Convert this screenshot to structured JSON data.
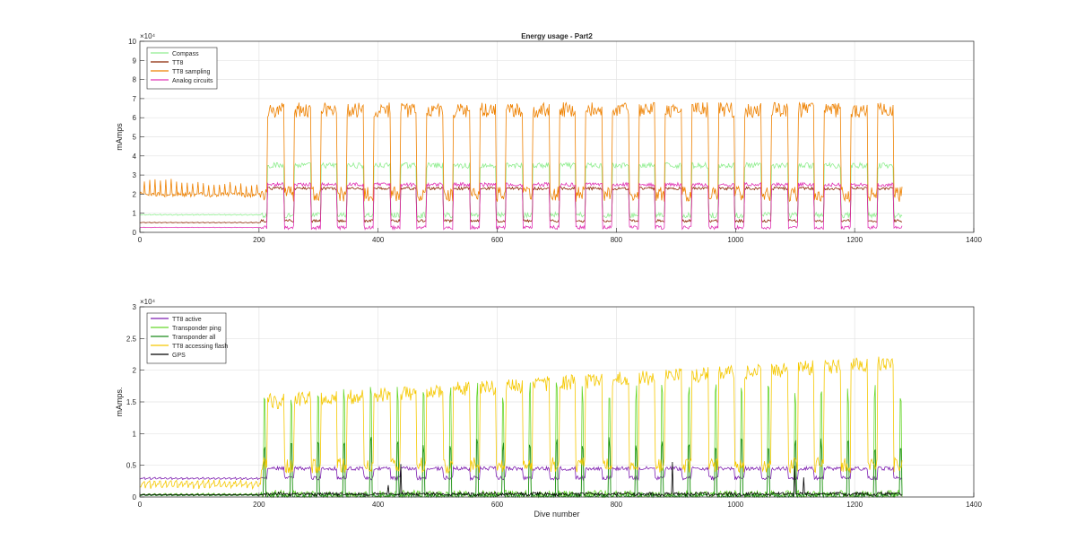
{
  "chart_data": [
    {
      "type": "line",
      "title": "Energy usage - Part2",
      "xlabel": "",
      "ylabel": "mAmps",
      "xlim": [
        0,
        1400
      ],
      "ylim": [
        0,
        100000
      ],
      "x_ticks": [
        "0",
        "200",
        "400",
        "600",
        "800",
        "1000",
        "1200",
        "1400"
      ],
      "y_ticks": [
        "0",
        "1",
        "2",
        "3",
        "4",
        "5",
        "6",
        "7",
        "8",
        "9",
        "10"
      ],
      "y_multiplier": "×10⁴",
      "grid": true,
      "legend_position": "top-left",
      "series": [
        {
          "name": "Compass",
          "color": "#90ee90",
          "level_pre": 9000,
          "level_high": 35000,
          "level_low": 9000,
          "amp_pre": 500,
          "noise": 3000
        },
        {
          "name": "TT8",
          "color": "#8b2500",
          "level_pre": 5000,
          "level_high": 23000,
          "level_low": 6000,
          "amp_pre": 300,
          "noise": 1500
        },
        {
          "name": "TT8 sampling",
          "color": "#ee8100",
          "level_pre": 19000,
          "level_high": 64000,
          "level_low": 20000,
          "amp_pre": 9000,
          "noise": 8000
        },
        {
          "name": "Analog circuits",
          "color": "#e033b3",
          "level_pre": 2500,
          "level_high": 25000,
          "level_low": 2500,
          "amp_pre": 200,
          "noise": 2000
        }
      ]
    },
    {
      "type": "line",
      "title": "",
      "xlabel": "Dive number",
      "ylabel": "mAmps.",
      "xlim": [
        0,
        1400
      ],
      "ylim": [
        0,
        30000
      ],
      "x_ticks": [
        "0",
        "200",
        "400",
        "600",
        "800",
        "1000",
        "1200",
        "1400"
      ],
      "y_ticks": [
        "0",
        "0.5",
        "1",
        "1.5",
        "2",
        "2.5",
        "3"
      ],
      "y_multiplier": "×10⁴",
      "grid": true,
      "legend_position": "top-left",
      "series": [
        {
          "name": "TT8 active",
          "color": "#7e1fb0",
          "level_pre": 2800,
          "level_high": 4500,
          "level_low": 3000,
          "amp_pre": 300,
          "noise": 600
        },
        {
          "name": "Transponder ping",
          "color": "#66d62b",
          "level_pre": 300,
          "level_high": 16000,
          "level_low": 300,
          "amp_pre": 300,
          "noise": 1500
        },
        {
          "name": "Transponder all",
          "color": "#1b8a1b",
          "level_pre": 200,
          "level_high": 8000,
          "level_low": 200,
          "amp_pre": 200,
          "noise": 800
        },
        {
          "name": "TT8 accessing flash",
          "color": "#f5c800",
          "level_pre": 1500,
          "level_high": 15000,
          "level_low": 5000,
          "amp_pre": 1200,
          "noise": 2500
        },
        {
          "name": "GPS",
          "color": "#000000",
          "level_pre": 300,
          "level_high": 500,
          "level_low": 400,
          "amp_pre": 150,
          "noise": 500
        }
      ]
    }
  ]
}
